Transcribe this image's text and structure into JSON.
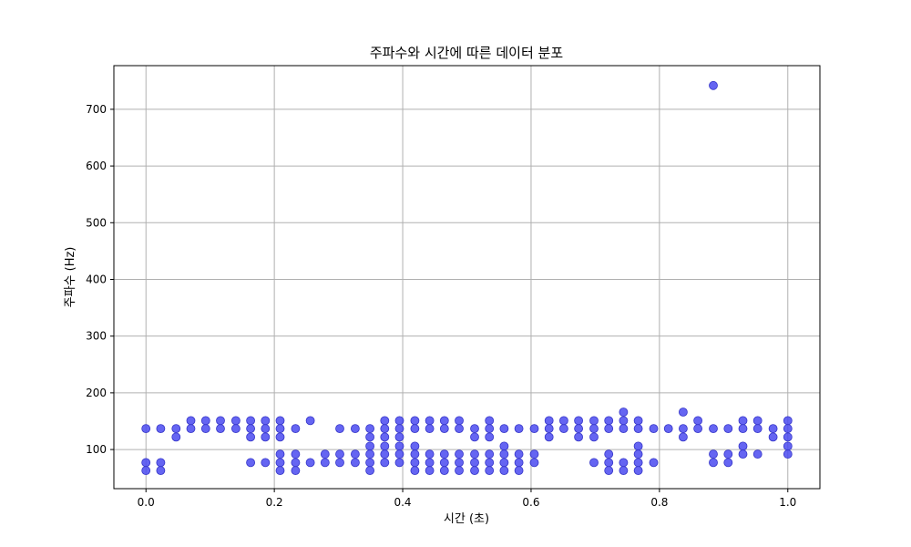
{
  "chart_data": {
    "type": "scatter",
    "title": "주파수와 시간에 따른 데이터 분포",
    "xlabel": "시간 (초)",
    "ylabel": "주파수 (Hz)",
    "xlim": [
      -0.05,
      1.05
    ],
    "ylim": [
      31,
      777
    ],
    "xticks": [
      0.0,
      0.2,
      0.4,
      0.6,
      0.8,
      1.0
    ],
    "xtick_labels": [
      "0.0",
      "0.2",
      "0.4",
      "0.6",
      "0.8",
      "1.0"
    ],
    "yticks": [
      100,
      200,
      300,
      400,
      500,
      600,
      700
    ],
    "ytick_labels": [
      "100",
      "200",
      "300",
      "400",
      "500",
      "600",
      "700"
    ],
    "grid": true,
    "marker_color": "#4a4af0",
    "marker_edge_color": "#3535c8",
    "series": [
      {
        "points": [
          [
            0.0,
            137
          ],
          [
            0.0,
            77
          ],
          [
            0.0,
            63
          ],
          [
            0.023,
            137
          ],
          [
            0.023,
            77
          ],
          [
            0.023,
            63
          ],
          [
            0.047,
            137
          ],
          [
            0.047,
            122
          ],
          [
            0.07,
            151
          ],
          [
            0.07,
            137
          ],
          [
            0.093,
            151
          ],
          [
            0.093,
            137
          ],
          [
            0.116,
            151
          ],
          [
            0.116,
            137
          ],
          [
            0.14,
            151
          ],
          [
            0.14,
            137
          ],
          [
            0.163,
            151
          ],
          [
            0.163,
            137
          ],
          [
            0.163,
            122
          ],
          [
            0.163,
            77
          ],
          [
            0.186,
            151
          ],
          [
            0.186,
            137
          ],
          [
            0.186,
            122
          ],
          [
            0.186,
            77
          ],
          [
            0.209,
            151
          ],
          [
            0.209,
            137
          ],
          [
            0.209,
            122
          ],
          [
            0.209,
            92
          ],
          [
            0.209,
            77
          ],
          [
            0.209,
            63
          ],
          [
            0.233,
            137
          ],
          [
            0.233,
            92
          ],
          [
            0.233,
            77
          ],
          [
            0.233,
            63
          ],
          [
            0.256,
            151
          ],
          [
            0.256,
            77
          ],
          [
            0.279,
            92
          ],
          [
            0.279,
            77
          ],
          [
            0.302,
            137
          ],
          [
            0.302,
            92
          ],
          [
            0.302,
            77
          ],
          [
            0.326,
            137
          ],
          [
            0.326,
            92
          ],
          [
            0.326,
            77
          ],
          [
            0.349,
            137
          ],
          [
            0.349,
            122
          ],
          [
            0.349,
            106
          ],
          [
            0.349,
            92
          ],
          [
            0.349,
            77
          ],
          [
            0.349,
            63
          ],
          [
            0.372,
            151
          ],
          [
            0.372,
            137
          ],
          [
            0.372,
            122
          ],
          [
            0.372,
            106
          ],
          [
            0.372,
            92
          ],
          [
            0.372,
            77
          ],
          [
            0.395,
            151
          ],
          [
            0.395,
            137
          ],
          [
            0.395,
            122
          ],
          [
            0.395,
            106
          ],
          [
            0.395,
            92
          ],
          [
            0.395,
            77
          ],
          [
            0.419,
            151
          ],
          [
            0.419,
            137
          ],
          [
            0.419,
            106
          ],
          [
            0.419,
            92
          ],
          [
            0.419,
            77
          ],
          [
            0.419,
            63
          ],
          [
            0.442,
            151
          ],
          [
            0.442,
            137
          ],
          [
            0.442,
            92
          ],
          [
            0.442,
            77
          ],
          [
            0.442,
            63
          ],
          [
            0.465,
            151
          ],
          [
            0.465,
            137
          ],
          [
            0.465,
            92
          ],
          [
            0.465,
            77
          ],
          [
            0.465,
            63
          ],
          [
            0.488,
            151
          ],
          [
            0.488,
            137
          ],
          [
            0.488,
            92
          ],
          [
            0.488,
            77
          ],
          [
            0.488,
            63
          ],
          [
            0.512,
            137
          ],
          [
            0.512,
            122
          ],
          [
            0.512,
            92
          ],
          [
            0.512,
            77
          ],
          [
            0.512,
            63
          ],
          [
            0.535,
            151
          ],
          [
            0.535,
            137
          ],
          [
            0.535,
            122
          ],
          [
            0.535,
            92
          ],
          [
            0.535,
            77
          ],
          [
            0.535,
            63
          ],
          [
            0.558,
            137
          ],
          [
            0.558,
            106
          ],
          [
            0.558,
            92
          ],
          [
            0.558,
            77
          ],
          [
            0.558,
            63
          ],
          [
            0.581,
            137
          ],
          [
            0.581,
            92
          ],
          [
            0.581,
            77
          ],
          [
            0.581,
            63
          ],
          [
            0.605,
            137
          ],
          [
            0.605,
            92
          ],
          [
            0.605,
            77
          ],
          [
            0.628,
            151
          ],
          [
            0.628,
            137
          ],
          [
            0.628,
            122
          ],
          [
            0.651,
            151
          ],
          [
            0.651,
            137
          ],
          [
            0.674,
            151
          ],
          [
            0.674,
            137
          ],
          [
            0.674,
            122
          ],
          [
            0.698,
            151
          ],
          [
            0.698,
            137
          ],
          [
            0.698,
            122
          ],
          [
            0.698,
            77
          ],
          [
            0.721,
            151
          ],
          [
            0.721,
            137
          ],
          [
            0.721,
            92
          ],
          [
            0.721,
            77
          ],
          [
            0.721,
            63
          ],
          [
            0.744,
            166
          ],
          [
            0.744,
            151
          ],
          [
            0.744,
            137
          ],
          [
            0.744,
            77
          ],
          [
            0.744,
            63
          ],
          [
            0.767,
            151
          ],
          [
            0.767,
            137
          ],
          [
            0.767,
            106
          ],
          [
            0.767,
            92
          ],
          [
            0.767,
            77
          ],
          [
            0.767,
            63
          ],
          [
            0.791,
            137
          ],
          [
            0.791,
            77
          ],
          [
            0.814,
            137
          ],
          [
            0.837,
            166
          ],
          [
            0.837,
            137
          ],
          [
            0.837,
            122
          ],
          [
            0.86,
            151
          ],
          [
            0.86,
            137
          ],
          [
            0.884,
            742
          ],
          [
            0.884,
            137
          ],
          [
            0.884,
            92
          ],
          [
            0.884,
            77
          ],
          [
            0.907,
            137
          ],
          [
            0.907,
            92
          ],
          [
            0.907,
            77
          ],
          [
            0.93,
            151
          ],
          [
            0.93,
            137
          ],
          [
            0.93,
            106
          ],
          [
            0.93,
            92
          ],
          [
            0.953,
            151
          ],
          [
            0.953,
            137
          ],
          [
            0.953,
            92
          ],
          [
            0.977,
            137
          ],
          [
            0.977,
            122
          ],
          [
            1.0,
            151
          ],
          [
            1.0,
            137
          ],
          [
            1.0,
            122
          ],
          [
            1.0,
            106
          ],
          [
            1.0,
            92
          ]
        ]
      }
    ]
  }
}
